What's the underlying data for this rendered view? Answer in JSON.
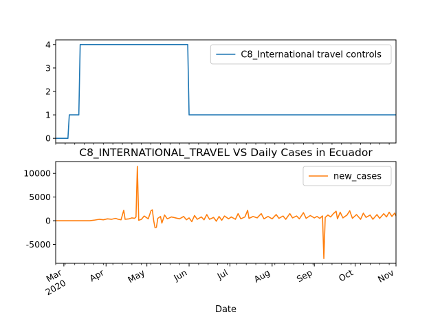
{
  "chart_data": [
    {
      "type": "line",
      "series": [
        {
          "name": "C8_International travel controls",
          "color": "#1f77b4",
          "points": [
            [
              "2020-02-24",
              0
            ],
            [
              "2020-03-04",
              0
            ],
            [
              "2020-03-05",
              1
            ],
            [
              "2020-03-12",
              1
            ],
            [
              "2020-03-13",
              4
            ],
            [
              "2020-05-31",
              4
            ],
            [
              "2020-06-01",
              1
            ],
            [
              "2020-10-31",
              1
            ]
          ]
        }
      ],
      "ylim": [
        -0.2,
        4.2
      ],
      "yticks": [
        0,
        1,
        2,
        3,
        4
      ],
      "xlim": [
        "2020-02-24",
        "2020-10-31"
      ],
      "legend": "top-right",
      "grid": false
    },
    {
      "type": "line",
      "title": "C8_INTERNATIONAL_TRAVEL VS Daily Cases in Ecuador",
      "xlabel": "Date",
      "series": [
        {
          "name": "new_cases",
          "color": "#ff7f0e",
          "points": [
            [
              "2020-02-24",
              0
            ],
            [
              "2020-03-10",
              0
            ],
            [
              "2020-03-20",
              0
            ],
            [
              "2020-03-24",
              150
            ],
            [
              "2020-03-27",
              300
            ],
            [
              "2020-03-30",
              200
            ],
            [
              "2020-04-02",
              400
            ],
            [
              "2020-04-05",
              300
            ],
            [
              "2020-04-08",
              500
            ],
            [
              "2020-04-10",
              300
            ],
            [
              "2020-04-12",
              200
            ],
            [
              "2020-04-14",
              2200
            ],
            [
              "2020-04-15",
              300
            ],
            [
              "2020-04-18",
              400
            ],
            [
              "2020-04-20",
              600
            ],
            [
              "2020-04-22",
              500
            ],
            [
              "2020-04-23",
              800
            ],
            [
              "2020-04-24",
              11500
            ],
            [
              "2020-04-25",
              100
            ],
            [
              "2020-04-27",
              300
            ],
            [
              "2020-04-29",
              1000
            ],
            [
              "2020-05-02",
              400
            ],
            [
              "2020-05-04",
              2100
            ],
            [
              "2020-05-05",
              2300
            ],
            [
              "2020-05-06",
              0
            ],
            [
              "2020-05-07",
              -1500
            ],
            [
              "2020-05-08",
              -1400
            ],
            [
              "2020-05-09",
              500
            ],
            [
              "2020-05-11",
              900
            ],
            [
              "2020-05-12",
              -500
            ],
            [
              "2020-05-14",
              1200
            ],
            [
              "2020-05-16",
              400
            ],
            [
              "2020-05-19",
              800
            ],
            [
              "2020-05-22",
              600
            ],
            [
              "2020-05-25",
              400
            ],
            [
              "2020-05-28",
              900
            ],
            [
              "2020-05-30",
              200
            ],
            [
              "2020-06-01",
              600
            ],
            [
              "2020-06-03",
              -200
            ],
            [
              "2020-06-05",
              1100
            ],
            [
              "2020-06-07",
              300
            ],
            [
              "2020-06-10",
              800
            ],
            [
              "2020-06-12",
              200
            ],
            [
              "2020-06-14",
              1300
            ],
            [
              "2020-06-16",
              300
            ],
            [
              "2020-06-19",
              700
            ],
            [
              "2020-06-21",
              -100
            ],
            [
              "2020-06-23",
              900
            ],
            [
              "2020-06-25",
              100
            ],
            [
              "2020-06-27",
              1000
            ],
            [
              "2020-06-30",
              400
            ],
            [
              "2020-07-02",
              800
            ],
            [
              "2020-07-05",
              300
            ],
            [
              "2020-07-07",
              1500
            ],
            [
              "2020-07-09",
              400
            ],
            [
              "2020-07-12",
              800
            ],
            [
              "2020-07-14",
              2200
            ],
            [
              "2020-07-15",
              500
            ],
            [
              "2020-07-18",
              900
            ],
            [
              "2020-07-21",
              600
            ],
            [
              "2020-07-24",
              1500
            ],
            [
              "2020-07-26",
              400
            ],
            [
              "2020-07-29",
              900
            ],
            [
              "2020-08-01",
              400
            ],
            [
              "2020-08-04",
              1300
            ],
            [
              "2020-08-06",
              500
            ],
            [
              "2020-08-09",
              1000
            ],
            [
              "2020-08-11",
              300
            ],
            [
              "2020-08-14",
              1500
            ],
            [
              "2020-08-16",
              600
            ],
            [
              "2020-08-19",
              1000
            ],
            [
              "2020-08-21",
              400
            ],
            [
              "2020-08-24",
              1700
            ],
            [
              "2020-08-26",
              500
            ],
            [
              "2020-08-29",
              1100
            ],
            [
              "2020-09-01",
              600
            ],
            [
              "2020-09-03",
              900
            ],
            [
              "2020-09-05",
              500
            ],
            [
              "2020-09-07",
              1000
            ],
            [
              "2020-09-08",
              -8000
            ],
            [
              "2020-09-09",
              700
            ],
            [
              "2020-09-11",
              1200
            ],
            [
              "2020-09-13",
              800
            ],
            [
              "2020-09-15",
              1500
            ],
            [
              "2020-09-17",
              2000
            ],
            [
              "2020-09-18",
              400
            ],
            [
              "2020-09-20",
              1800
            ],
            [
              "2020-09-22",
              600
            ],
            [
              "2020-09-25",
              1200
            ],
            [
              "2020-09-27",
              2100
            ],
            [
              "2020-09-29",
              500
            ],
            [
              "2020-10-02",
              1300
            ],
            [
              "2020-10-05",
              300
            ],
            [
              "2020-10-07",
              1600
            ],
            [
              "2020-10-09",
              700
            ],
            [
              "2020-10-12",
              1200
            ],
            [
              "2020-10-14",
              300
            ],
            [
              "2020-10-17",
              1300
            ],
            [
              "2020-10-19",
              500
            ],
            [
              "2020-10-22",
              1500
            ],
            [
              "2020-10-24",
              800
            ],
            [
              "2020-10-26",
              1800
            ],
            [
              "2020-10-28",
              900
            ],
            [
              "2020-10-30",
              1600
            ],
            [
              "2020-10-31",
              1000
            ]
          ]
        }
      ],
      "ylim": [
        -9000,
        12500
      ],
      "yticks": [
        -5000,
        0,
        5000,
        10000
      ],
      "xlim": [
        "2020-02-24",
        "2020-10-31"
      ],
      "xticks": [
        {
          "date": "2020-03-01",
          "label": "Mar",
          "sublabel": "2020"
        },
        {
          "date": "2020-04-01",
          "label": "Apr"
        },
        {
          "date": "2020-05-01",
          "label": "May"
        },
        {
          "date": "2020-06-01",
          "label": "Jun"
        },
        {
          "date": "2020-07-01",
          "label": "Jul"
        },
        {
          "date": "2020-08-01",
          "label": "Aug"
        },
        {
          "date": "2020-09-01",
          "label": "Sep"
        },
        {
          "date": "2020-10-01",
          "label": "Oct"
        },
        {
          "date": "2020-11-01",
          "label": "Nov"
        }
      ],
      "legend": "top-right",
      "grid": false
    }
  ]
}
